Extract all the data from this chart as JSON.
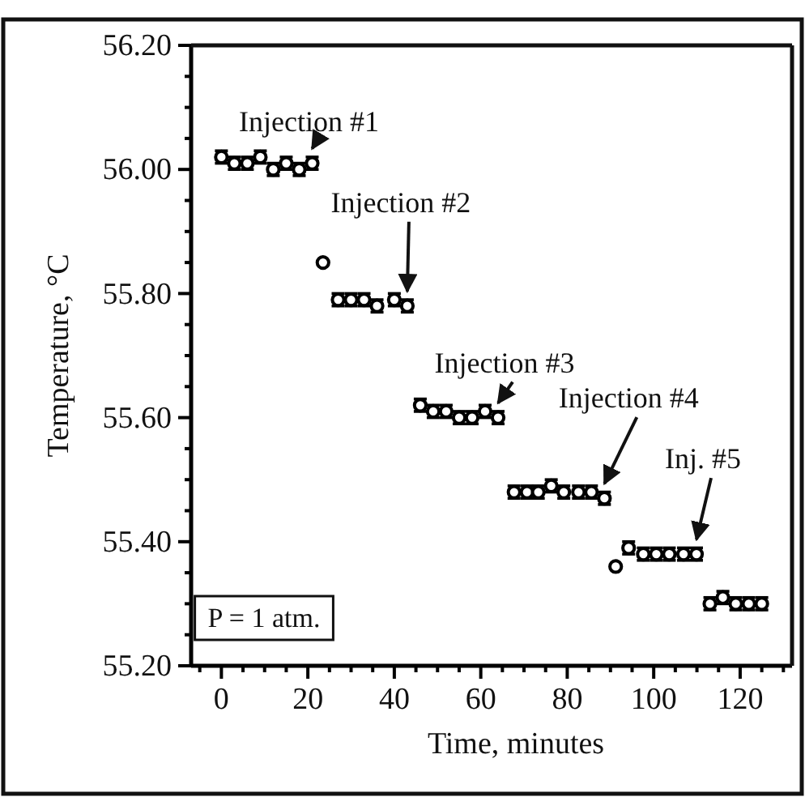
{
  "chart_data": {
    "type": "scatter",
    "xlabel": "Time, minutes",
    "ylabel": "Temperature, °C",
    "xlim": [
      -7,
      132
    ],
    "ylim": [
      55.2,
      56.2
    ],
    "xticks": [
      {
        "value": -5,
        "label": null
      },
      0,
      {
        "value": 5,
        "label": null
      },
      {
        "value": 10,
        "label": null
      },
      {
        "value": 15,
        "label": null
      },
      20,
      {
        "value": 25,
        "label": null
      },
      {
        "value": 30,
        "label": null
      },
      {
        "value": 35,
        "label": null
      },
      40,
      {
        "value": 45,
        "label": null
      },
      {
        "value": 50,
        "label": null
      },
      {
        "value": 55,
        "label": null
      },
      60,
      {
        "value": 65,
        "label": null
      },
      {
        "value": 70,
        "label": null
      },
      {
        "value": 75,
        "label": null
      },
      80,
      {
        "value": 85,
        "label": null
      },
      {
        "value": 90,
        "label": null
      },
      {
        "value": 95,
        "label": null
      },
      100,
      {
        "value": 105,
        "label": null
      },
      {
        "value": 110,
        "label": null
      },
      {
        "value": 115,
        "label": null
      },
      120,
      {
        "value": 125,
        "label": null
      },
      {
        "value": 130,
        "label": null
      }
    ],
    "yticks": [
      {
        "value": 55.2,
        "label": "55.20"
      },
      {
        "value": 55.25,
        "label": null
      },
      {
        "value": 55.3,
        "label": null
      },
      {
        "value": 55.35,
        "label": null
      },
      {
        "value": 55.4,
        "label": "55.40"
      },
      {
        "value": 55.45,
        "label": null
      },
      {
        "value": 55.5,
        "label": null
      },
      {
        "value": 55.55,
        "label": null
      },
      {
        "value": 55.6,
        "label": "55.60"
      },
      {
        "value": 55.65,
        "label": null
      },
      {
        "value": 55.7,
        "label": null
      },
      {
        "value": 55.75,
        "label": null
      },
      {
        "value": 55.8,
        "label": "55.80"
      },
      {
        "value": 55.85,
        "label": null
      },
      {
        "value": 55.9,
        "label": null
      },
      {
        "value": 55.95,
        "label": null
      },
      {
        "value": 56.0,
        "label": "56.00"
      },
      {
        "value": 56.05,
        "label": null
      },
      {
        "value": 56.1,
        "label": null
      },
      {
        "value": 56.15,
        "label": null
      },
      {
        "value": 56.2,
        "label": "56.20"
      }
    ],
    "marker": "circle",
    "series": [
      {
        "color": "#000000",
        "x": [
          0,
          3,
          6,
          9,
          12,
          15,
          18,
          21,
          23.5,
          27,
          30,
          33,
          36,
          40,
          43,
          46,
          49,
          52,
          55,
          58,
          61,
          64,
          67.7,
          70.7,
          73.3,
          76.3,
          79.2,
          82.6,
          85.6,
          88.6,
          91.2,
          94.2,
          97.6,
          100.6,
          103.6,
          106.9,
          109.9,
          113,
          116,
          119,
          122,
          125
        ],
        "values": [
          56.02,
          56.01,
          56.01,
          56.02,
          56.0,
          56.01,
          56.0,
          56.01,
          55.85,
          55.79,
          55.79,
          55.79,
          55.78,
          55.79,
          55.78,
          55.62,
          55.61,
          55.61,
          55.6,
          55.6,
          55.61,
          55.6,
          55.48,
          55.48,
          55.48,
          55.49,
          55.48,
          55.48,
          55.48,
          55.47,
          55.36,
          55.39,
          55.38,
          55.38,
          55.38,
          55.38,
          55.38,
          55.3,
          55.31,
          55.3,
          55.3,
          55.3
        ],
        "errors": [
          0.01,
          0.01,
          0.01,
          0.01,
          0.01,
          0.01,
          0.01,
          0.01,
          null,
          0.01,
          0.01,
          0.01,
          0.01,
          0.01,
          0.01,
          0.01,
          0.01,
          0.01,
          0.01,
          0.01,
          0.01,
          0.01,
          0.01,
          0.01,
          0.01,
          0.01,
          0.01,
          0.01,
          0.01,
          0.01,
          null,
          0.01,
          0.01,
          0.01,
          0.01,
          0.01,
          0.01,
          0.01,
          0.01,
          0.01,
          0.01,
          0.01
        ]
      }
    ],
    "annotations": [
      {
        "text": "Injection #1",
        "x": 21,
        "y": 56.01
      },
      {
        "text": "Injection #2",
        "x": 43,
        "y": 55.78
      },
      {
        "text": "Injection #3",
        "x": 64,
        "y": 55.6
      },
      {
        "text": "Injection #4",
        "x": 88.6,
        "y": 55.47
      },
      {
        "text": "Inj. #5",
        "x": 109.9,
        "y": 55.38
      },
      "P = 1 atm."
    ]
  }
}
